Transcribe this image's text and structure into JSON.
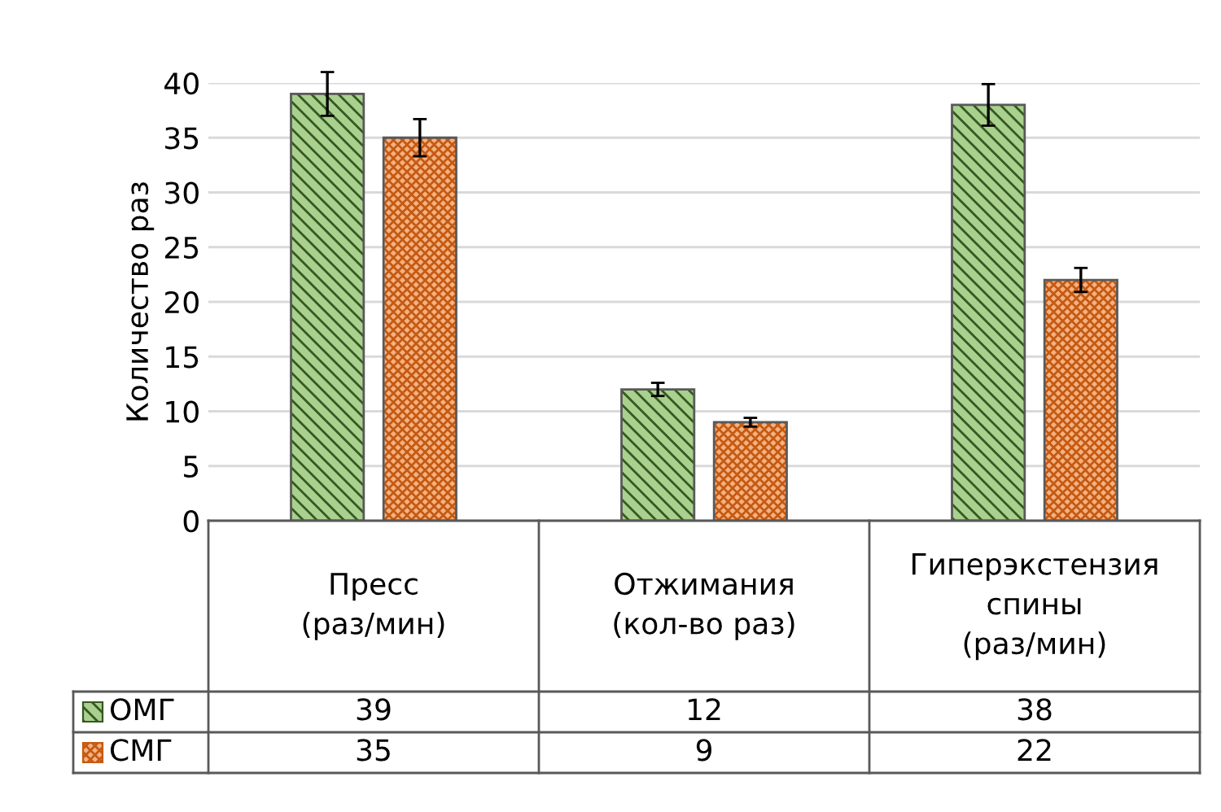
{
  "chart_data": {
    "type": "bar",
    "ylabel": "Количество раз",
    "categories": [
      "Пресс\n(раз/мин)",
      "Отжимания\n(кол-во раз)",
      "Гиперэкстензия\nспины\n(раз/мин)"
    ],
    "series": [
      {
        "name": "ОМГ",
        "color": "#a9d18e",
        "values": [
          39,
          12,
          38
        ],
        "errors": [
          2,
          0.6,
          1.9
        ]
      },
      {
        "name": "СМГ",
        "color": "#f4b183",
        "values": [
          35,
          9,
          22
        ],
        "errors": [
          1.7,
          0.4,
          1.1
        ]
      }
    ],
    "ylim": [
      0,
      40
    ],
    "yticks": [
      0,
      5,
      10,
      15,
      20,
      25,
      30,
      35,
      40
    ],
    "grid": "y",
    "legend": "bottom",
    "data_labels": true
  }
}
